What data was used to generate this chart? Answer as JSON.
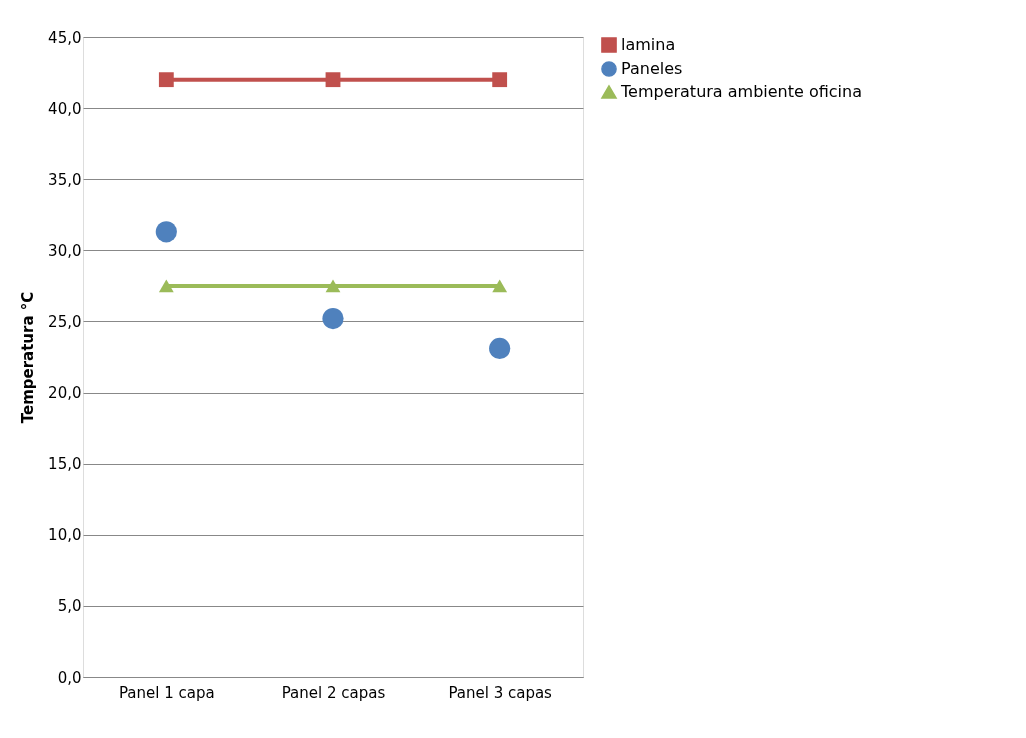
{
  "chart_data": {
    "type": "line",
    "ylabel": "Temperatura °C",
    "categories": [
      "Panel 1 capa",
      "Panel 2 capas",
      "Panel 3 capas"
    ],
    "series": [
      {
        "name": "lamina",
        "line_style": "solid",
        "marker": "square",
        "color": "#c0504d",
        "values": [
          42.0,
          42.0,
          42.0
        ]
      },
      {
        "name": "Paneles",
        "type": "scatter",
        "marker": "circle",
        "color": "#4f81bd",
        "values": [
          31.3,
          25.2,
          23.1
        ]
      },
      {
        "name": "Temperatura ambiente oficina",
        "line_style": "solid",
        "marker": "triangle",
        "color": "#9bbb59",
        "values": [
          27.5,
          27.5,
          27.5
        ]
      }
    ],
    "ylim": [
      0,
      45
    ],
    "yticks": [
      {
        "value": 0,
        "label": "0,0"
      },
      {
        "value": 5,
        "label": "5,0"
      },
      {
        "value": 10,
        "label": "10,0"
      },
      {
        "value": 15,
        "label": "15,0"
      },
      {
        "value": 20,
        "label": "20,0"
      },
      {
        "value": 25,
        "label": "25,0"
      },
      {
        "value": 30,
        "label": "30,0"
      },
      {
        "value": 35,
        "label": "35,0"
      },
      {
        "value": 40,
        "label": "40,0"
      },
      {
        "value": 45,
        "label": "45,0"
      }
    ],
    "grid": "y",
    "legend": "right"
  }
}
